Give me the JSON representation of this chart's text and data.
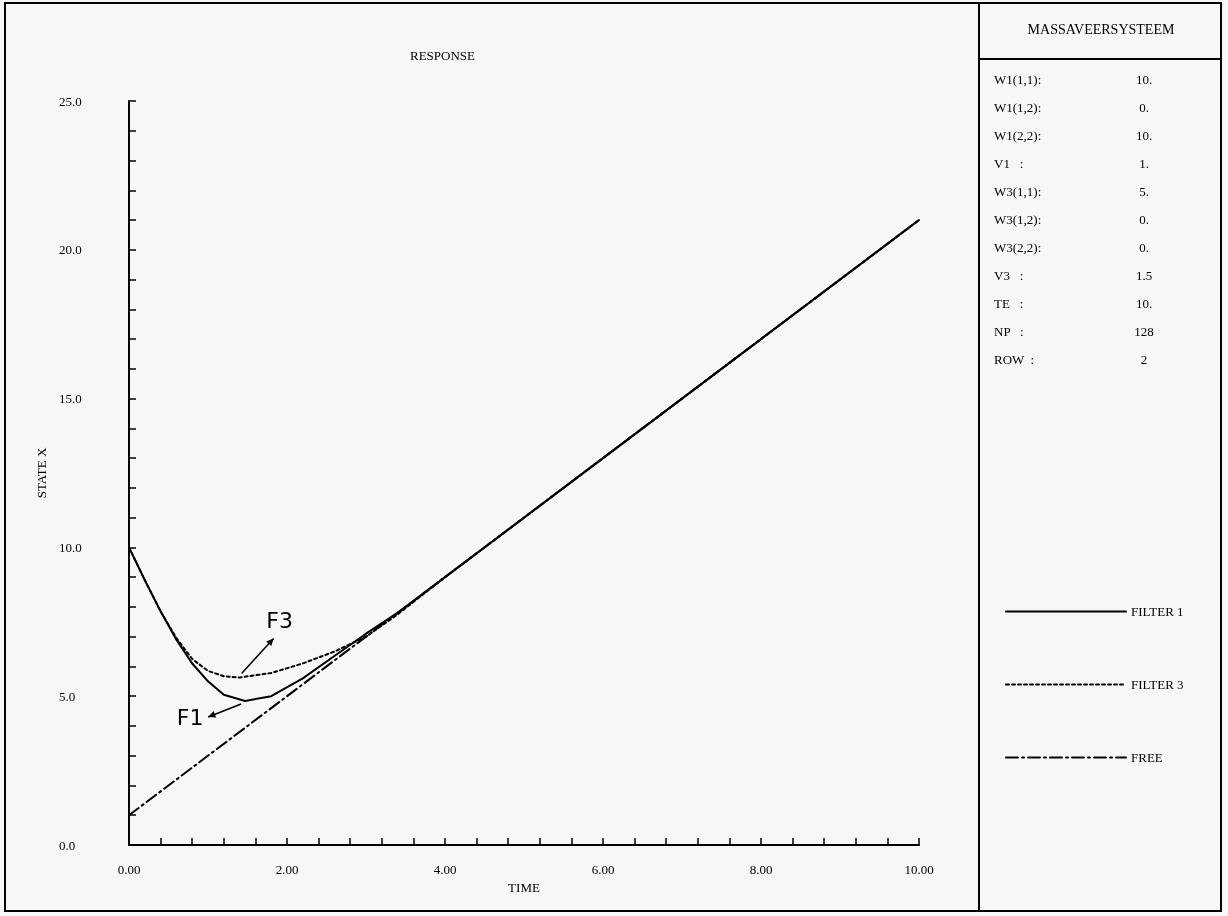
{
  "chart_data": [
    {
      "type": "line",
      "title": "RESPONSE",
      "xlabel": "TIME",
      "ylabel": "STATE X",
      "legend": "right",
      "grid": false,
      "marker": "none",
      "xlim": [
        0,
        10
      ],
      "ylim": [
        0,
        25
      ],
      "xticks": [
        {
          "value": 0,
          "label": "0.00"
        },
        {
          "value": 0.4,
          "label": null
        },
        {
          "value": 0.8,
          "label": null
        },
        {
          "value": 1.2,
          "label": null
        },
        {
          "value": 1.6,
          "label": null
        },
        {
          "value": 2,
          "label": "2.00"
        },
        {
          "value": 2.4,
          "label": null
        },
        {
          "value": 2.8,
          "label": null
        },
        {
          "value": 3.2,
          "label": null
        },
        {
          "value": 3.6,
          "label": null
        },
        {
          "value": 4,
          "label": "4.00"
        },
        {
          "value": 4.4,
          "label": null
        },
        {
          "value": 4.8,
          "label": null
        },
        {
          "value": 5.2,
          "label": null
        },
        {
          "value": 5.6,
          "label": null
        },
        {
          "value": 6,
          "label": "6.00"
        },
        {
          "value": 6.4,
          "label": null
        },
        {
          "value": 6.8,
          "label": null
        },
        {
          "value": 7.2,
          "label": null
        },
        {
          "value": 7.6,
          "label": null
        },
        {
          "value": 8,
          "label": "8.00"
        },
        {
          "value": 8.4,
          "label": null
        },
        {
          "value": 8.8,
          "label": null
        },
        {
          "value": 9.2,
          "label": null
        },
        {
          "value": 9.6,
          "label": null
        },
        {
          "value": 10,
          "label": "10.00"
        }
      ],
      "yticks": [
        {
          "value": 0,
          "label": "0.0"
        },
        {
          "value": 1,
          "label": null
        },
        {
          "value": 2,
          "label": null
        },
        {
          "value": 3,
          "label": null
        },
        {
          "value": 4,
          "label": null
        },
        {
          "value": 5,
          "label": "5.0"
        },
        {
          "value": 6,
          "label": null
        },
        {
          "value": 7,
          "label": null
        },
        {
          "value": 8,
          "label": null
        },
        {
          "value": 9,
          "label": null
        },
        {
          "value": 10,
          "label": "10.0"
        },
        {
          "value": 11,
          "label": null
        },
        {
          "value": 12,
          "label": null
        },
        {
          "value": 13,
          "label": null
        },
        {
          "value": 14,
          "label": null
        },
        {
          "value": 15,
          "label": "15.0"
        },
        {
          "value": 16,
          "label": null
        },
        {
          "value": 17,
          "label": null
        },
        {
          "value": 18,
          "label": null
        },
        {
          "value": 19,
          "label": null
        },
        {
          "value": 20,
          "label": "20.0"
        },
        {
          "value": 21,
          "label": null
        },
        {
          "value": 22,
          "label": null
        },
        {
          "value": 23,
          "label": null
        },
        {
          "value": 24,
          "label": null
        },
        {
          "value": 25,
          "label": "25.0"
        }
      ],
      "series": [
        {
          "name": "FILTER 1",
          "color": "#000000",
          "line_style": "solid",
          "x": [
            0,
            0.2,
            0.4,
            0.6,
            0.8,
            1.0,
            1.2,
            1.47,
            1.8,
            2.2,
            2.6,
            3.0,
            3.4,
            4,
            6,
            8,
            10
          ],
          "values": [
            10,
            8.9,
            7.85,
            6.9,
            6.1,
            5.5,
            5.05,
            4.84,
            5.0,
            5.6,
            6.35,
            7.1,
            7.8,
            9,
            13,
            17,
            21
          ]
        },
        {
          "name": "FILTER 3",
          "color": "#000000",
          "line_style": "dotted",
          "x": [
            0,
            0.2,
            0.4,
            0.6,
            0.8,
            1.0,
            1.2,
            1.4,
            1.8,
            2.2,
            2.6,
            3.0,
            3.4,
            4,
            6,
            8,
            10
          ],
          "values": [
            10,
            8.9,
            7.85,
            6.95,
            6.25,
            5.85,
            5.67,
            5.63,
            5.78,
            6.1,
            6.5,
            7.0,
            7.75,
            9,
            13,
            17,
            21
          ]
        },
        {
          "name": "FREE",
          "color": "#000000",
          "line_style": "dashed",
          "x": [
            0,
            10
          ],
          "values": [
            1,
            21
          ]
        }
      ],
      "annotations": [
        {
          "text": "F1",
          "x": 1.47,
          "y": 4.84
        },
        {
          "text": "F3",
          "x": 1.4,
          "y": 5.63
        }
      ]
    },
    {
      "type": "other",
      "title": "MASSAVEERSYSTEEM",
      "annotations": [
        "W1(1,1):",
        "10.",
        "W1(1,2):",
        "0.",
        "W1(2,2):",
        "10.",
        "V1   :",
        "1.",
        "W3(1,1):",
        "5.",
        "W3(1,2):",
        "0.",
        "W3(2,2):",
        "0.",
        "V3   :",
        "1.5",
        "TE   :",
        "10.",
        "NP   :",
        "128",
        "ROW  :",
        "2"
      ]
    }
  ]
}
